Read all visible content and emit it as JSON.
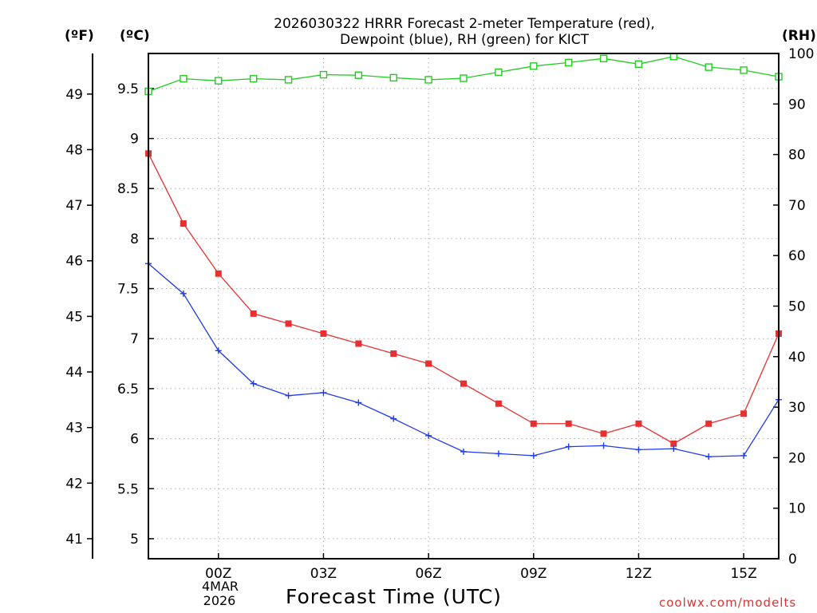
{
  "chart_data": {
    "type": "line",
    "title_line1": "2026030322 HRRR Forecast 2-meter Temperature (red),",
    "title_line2": "Dewpoint (blue), RH (green) for KICT",
    "xlabel": "Forecast Time (UTC)",
    "credit": "coolwx.com/modelts",
    "unit_f": "(ºF)",
    "unit_c": "(ºC)",
    "unit_rh": "(RH)",
    "x_ticks": [
      "00Z",
      "03Z",
      "06Z",
      "09Z",
      "12Z",
      "15Z"
    ],
    "x_tick_hours": [
      2,
      5,
      8,
      11,
      14,
      17
    ],
    "date_label_line1": "4MAR",
    "date_label_line2": "2026",
    "xlim": [
      0,
      18
    ],
    "celsius_axis": {
      "ylim": [
        4.8,
        9.85
      ],
      "ticks": [
        "5",
        "5.5",
        "6",
        "6.5",
        "7",
        "7.5",
        "8",
        "8.5",
        "9",
        "9.5"
      ]
    },
    "fahrenheit_axis": {
      "ticks": [
        "41",
        "42",
        "43",
        "44",
        "45",
        "46",
        "47",
        "48",
        "49"
      ]
    },
    "rh_axis": {
      "ylim": [
        0,
        100
      ],
      "ticks": [
        "0",
        "10",
        "20",
        "30",
        "40",
        "50",
        "60",
        "70",
        "80",
        "90",
        "100"
      ]
    },
    "series": [
      {
        "name": "Temperature",
        "color": "#e83030",
        "marker": "filled-square",
        "axis": "celsius",
        "values": [
          8.85,
          8.15,
          7.65,
          7.25,
          7.15,
          7.05,
          6.95,
          6.85,
          6.75,
          6.55,
          6.35,
          6.15,
          6.15,
          6.05,
          6.15,
          5.95,
          6.15,
          6.25,
          7.05
        ]
      },
      {
        "name": "Dewpoint",
        "color": "#1e3ce8",
        "marker": "plus",
        "axis": "celsius",
        "values": [
          7.75,
          7.45,
          6.88,
          6.55,
          6.43,
          6.46,
          6.36,
          6.2,
          6.03,
          5.87,
          5.85,
          5.83,
          5.92,
          5.93,
          5.89,
          5.9,
          5.82,
          5.83,
          6.39
        ]
      },
      {
        "name": "RH",
        "color": "#22cc22",
        "marker": "open-square",
        "axis": "rh",
        "values": [
          92.5,
          95,
          94.6,
          95,
          94.8,
          95.8,
          95.7,
          95.2,
          94.8,
          95.1,
          96.3,
          97.5,
          98.2,
          99,
          97.9,
          99.4,
          97.3,
          96.7,
          95.4
        ]
      }
    ]
  }
}
